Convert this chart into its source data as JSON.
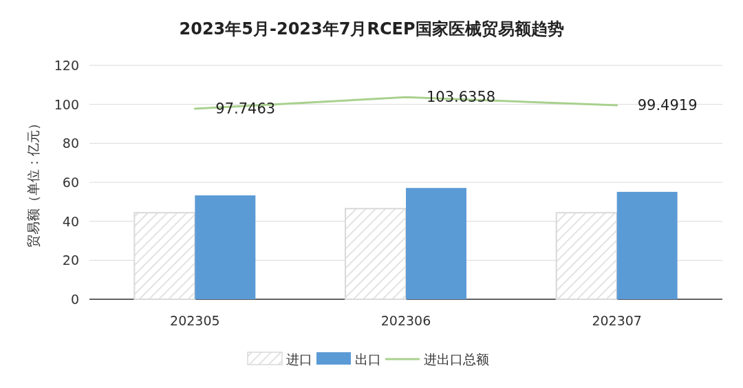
{
  "chart_data": {
    "type": "bar",
    "title": "2023年5月-2023年7月RCEP国家医械贸易额趋势",
    "ylabel": "贸易额（单位：亿元）",
    "categories": [
      "202305",
      "202306",
      "202307"
    ],
    "series": [
      {
        "name": "进口",
        "color": "#d9d9d9",
        "values": [
          44.4,
          46.5,
          44.4
        ]
      },
      {
        "name": "出口",
        "color": "#5b9bd5",
        "values": [
          53.3,
          57.1,
          55.1
        ]
      },
      {
        "name": "进出口总额",
        "type": "line",
        "color": "#a9d18e",
        "values": [
          97.7463,
          103.6358,
          99.4919
        ],
        "value_labels": [
          "97.7463",
          "103.6358",
          "99.4919"
        ]
      }
    ],
    "ylim": [
      0,
      120
    ],
    "yticks": [
      0,
      20,
      40,
      60,
      80,
      100,
      120
    ],
    "grid": "y",
    "legend": "bottom",
    "marker": "none",
    "line_style": "solid"
  }
}
